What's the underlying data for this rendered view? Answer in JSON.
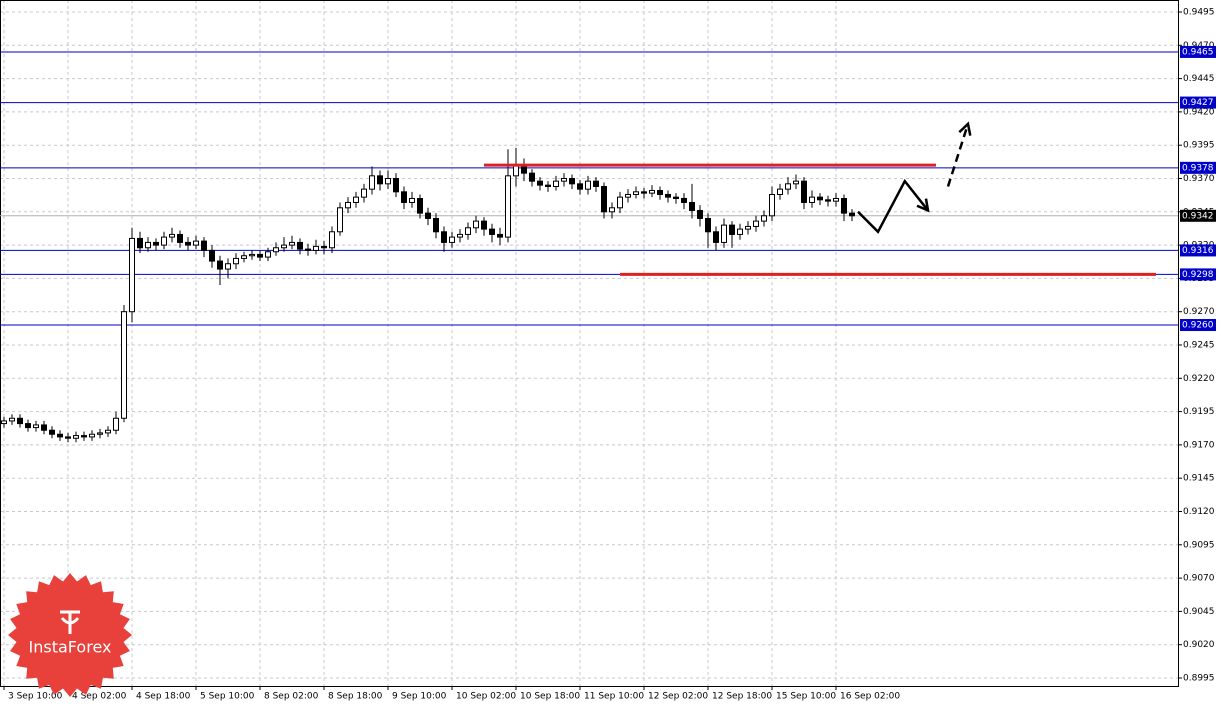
{
  "chart_data": {
    "type": "candlestick",
    "open": [
      0.9186,
      0.9188,
      0.919,
      0.9186,
      0.9183,
      0.9185,
      0.9181,
      0.9178,
      0.9176,
      0.9175,
      0.9177,
      0.9176,
      0.9178,
      0.9179,
      0.9181,
      0.919,
      0.927,
      0.9325,
      0.9318,
      0.9322,
      0.932,
      0.9326,
      0.9328,
      0.9322,
      0.932,
      0.9323,
      0.9316,
      0.9308,
      0.9302,
      0.9306,
      0.931,
      0.9312,
      0.9313,
      0.9311,
      0.9315,
      0.9318,
      0.932,
      0.9322,
      0.9317,
      0.9316,
      0.9319,
      0.9318,
      0.933,
      0.9348,
      0.9352,
      0.9356,
      0.9362,
      0.9372,
      0.9366,
      0.937,
      0.936,
      0.9352,
      0.9355,
      0.9344,
      0.934,
      0.933,
      0.9322,
      0.9326,
      0.9328,
      0.9333,
      0.9338,
      0.9332,
      0.9328,
      0.9326,
      0.9372,
      0.938,
      0.9374,
      0.9368,
      0.9365,
      0.9364,
      0.9368,
      0.937,
      0.9366,
      0.9362,
      0.9368,
      0.9364,
      0.9345,
      0.9348,
      0.9356,
      0.9358,
      0.936,
      0.9359,
      0.9361,
      0.9358,
      0.9356,
      0.9355,
      0.9352,
      0.9346,
      0.934,
      0.933,
      0.9322,
      0.9335,
      0.9328,
      0.9332,
      0.9334,
      0.9338,
      0.9342,
      0.9358,
      0.9362,
      0.9366,
      0.9368,
      0.9352,
      0.9356,
      0.9354,
      0.9353,
      0.9355,
      0.9344
    ],
    "high": [
      0.9191,
      0.9193,
      0.9193,
      0.9189,
      0.9188,
      0.9188,
      0.9184,
      0.9181,
      0.9179,
      0.918,
      0.918,
      0.9181,
      0.9182,
      0.9184,
      0.9195,
      0.9275,
      0.9333,
      0.933,
      0.9326,
      0.9325,
      0.933,
      0.9333,
      0.9331,
      0.9326,
      0.9327,
      0.9326,
      0.932,
      0.9312,
      0.931,
      0.9314,
      0.9315,
      0.9316,
      0.9316,
      0.9318,
      0.9322,
      0.9326,
      0.9327,
      0.9325,
      0.9321,
      0.9324,
      0.9323,
      0.9334,
      0.9352,
      0.9356,
      0.936,
      0.9366,
      0.9379,
      0.9376,
      0.9376,
      0.9374,
      0.9364,
      0.936,
      0.9358,
      0.9348,
      0.9344,
      0.9334,
      0.933,
      0.9332,
      0.9337,
      0.9342,
      0.9341,
      0.9336,
      0.9333,
      0.9392,
      0.9393,
      0.9385,
      0.9377,
      0.9371,
      0.9368,
      0.9372,
      0.9374,
      0.9373,
      0.9369,
      0.9372,
      0.9371,
      0.9367,
      0.9352,
      0.936,
      0.9362,
      0.9364,
      0.9363,
      0.9365,
      0.9364,
      0.9361,
      0.9359,
      0.9359,
      0.9366,
      0.935,
      0.9344,
      0.9334,
      0.934,
      0.9338,
      0.9336,
      0.9338,
      0.9342,
      0.9346,
      0.9364,
      0.9366,
      0.9371,
      0.9373,
      0.9371,
      0.9361,
      0.9359,
      0.9357,
      0.9359,
      0.9358,
      0.9347
    ],
    "low": [
      0.9183,
      0.9185,
      0.9183,
      0.918,
      0.918,
      0.9178,
      0.9175,
      0.9173,
      0.9172,
      0.9172,
      0.9173,
      0.9173,
      0.9175,
      0.9176,
      0.9178,
      0.9187,
      0.9262,
      0.9314,
      0.9315,
      0.9316,
      0.9317,
      0.9322,
      0.9318,
      0.9316,
      0.9317,
      0.9311,
      0.9303,
      0.929,
      0.9295,
      0.9302,
      0.9307,
      0.9309,
      0.9308,
      0.9308,
      0.9312,
      0.9315,
      0.9317,
      0.9313,
      0.9312,
      0.9313,
      0.9313,
      0.9314,
      0.9327,
      0.9344,
      0.9348,
      0.9352,
      0.9358,
      0.9361,
      0.9362,
      0.9356,
      0.9347,
      0.9348,
      0.934,
      0.9335,
      0.9325,
      0.9315,
      0.9318,
      0.9322,
      0.9324,
      0.9329,
      0.9327,
      0.9322,
      0.932,
      0.9322,
      0.9364,
      0.9368,
      0.9364,
      0.9361,
      0.936,
      0.9361,
      0.9364,
      0.9362,
      0.9358,
      0.9358,
      0.936,
      0.934,
      0.934,
      0.9344,
      0.9352,
      0.9355,
      0.9355,
      0.9356,
      0.9354,
      0.9352,
      0.9351,
      0.9347,
      0.934,
      0.9334,
      0.9318,
      0.9316,
      0.9318,
      0.9318,
      0.9324,
      0.9328,
      0.933,
      0.9334,
      0.9338,
      0.9354,
      0.9358,
      0.9362,
      0.9347,
      0.9348,
      0.935,
      0.9349,
      0.9349,
      0.9338,
      0.9338
    ],
    "close": [
      0.9188,
      0.919,
      0.9186,
      0.9183,
      0.9185,
      0.9181,
      0.9178,
      0.9176,
      0.9175,
      0.9177,
      0.9176,
      0.9178,
      0.9179,
      0.9181,
      0.919,
      0.927,
      0.9325,
      0.9318,
      0.9322,
      0.932,
      0.9326,
      0.9328,
      0.9322,
      0.932,
      0.9323,
      0.9316,
      0.9308,
      0.9302,
      0.9306,
      0.931,
      0.9312,
      0.9313,
      0.9311,
      0.9315,
      0.9318,
      0.932,
      0.9322,
      0.9317,
      0.9316,
      0.9319,
      0.9318,
      0.933,
      0.9348,
      0.9352,
      0.9356,
      0.9362,
      0.9372,
      0.9366,
      0.937,
      0.936,
      0.9352,
      0.9355,
      0.9344,
      0.934,
      0.933,
      0.9322,
      0.9326,
      0.9328,
      0.9333,
      0.9338,
      0.9332,
      0.9328,
      0.9326,
      0.9372,
      0.938,
      0.9374,
      0.9368,
      0.9365,
      0.9364,
      0.9368,
      0.937,
      0.9366,
      0.9362,
      0.9368,
      0.9364,
      0.9345,
      0.9348,
      0.9356,
      0.9358,
      0.936,
      0.9359,
      0.9361,
      0.9358,
      0.9356,
      0.9355,
      0.9352,
      0.9346,
      0.934,
      0.933,
      0.9322,
      0.9335,
      0.9328,
      0.9332,
      0.9334,
      0.9338,
      0.9342,
      0.9358,
      0.9362,
      0.9366,
      0.9368,
      0.9352,
      0.9356,
      0.9354,
      0.9353,
      0.9355,
      0.9344,
      0.9342
    ],
    "xlim": [
      -0.5,
      146.75
    ],
    "xticks": [
      {
        "value": 0,
        "label": "3 Sep 10:00"
      },
      {
        "value": 8,
        "label": "4 Sep 02:00"
      },
      {
        "value": 16,
        "label": "4 Sep 18:00"
      },
      {
        "value": 24,
        "label": "5 Sep 10:00"
      },
      {
        "value": 32,
        "label": "8 Sep 02:00"
      },
      {
        "value": 40,
        "label": "8 Sep 18:00"
      },
      {
        "value": 48,
        "label": "9 Sep 10:00"
      },
      {
        "value": 56,
        "label": "10 Sep 02:00"
      },
      {
        "value": 64,
        "label": "10 Sep 18:00"
      },
      {
        "value": 72,
        "label": "11 Sep 10:00"
      },
      {
        "value": 80,
        "label": "12 Sep 02:00"
      },
      {
        "value": 88,
        "label": "12 Sep 18:00"
      },
      {
        "value": 96,
        "label": "15 Sep 10:00"
      },
      {
        "value": 104,
        "label": "16 Sep 02:00"
      }
    ],
    "ylim": [
      0.8989,
      0.9504
    ],
    "yticks": [
      0.8995,
      {
        "value": 0.902,
        "label": "0.9020"
      },
      0.9045,
      {
        "value": 0.907,
        "label": "0.9070"
      },
      0.9095,
      {
        "value": 0.912,
        "label": "0.9120"
      },
      0.9145,
      {
        "value": 0.917,
        "label": "0.9170"
      },
      0.9195,
      {
        "value": 0.922,
        "label": "0.9220"
      },
      0.9245,
      {
        "value": 0.927,
        "label": "0.9270"
      },
      0.9295,
      {
        "value": 0.932,
        "label": "0.9320"
      },
      0.9345,
      {
        "value": 0.937,
        "label": "0.9370"
      },
      0.9395,
      {
        "value": 0.942,
        "label": "0.9420"
      },
      0.9445,
      {
        "value": 0.947,
        "label": "0.9470"
      },
      0.9495
    ],
    "grid": true,
    "color": "#000000",
    "levels": [
      0.9465,
      0.9427,
      0.9378,
      0.9316,
      0.9298,
      {
        "value": 0.926,
        "label": "0.9260"
      }
    ],
    "level_color": "#0000c8",
    "current_price": 0.9342,
    "zones": [
      {
        "value": 0.938,
        "x": [
          60,
          116.5
        ]
      },
      {
        "value": 0.9298,
        "x": [
          77,
          144
        ]
      }
    ],
    "zone_color": "#e02020",
    "forecast": {
      "solid": {
        "x": [
          106.75,
          109.25,
          112.6,
          115.5
        ],
        "y": [
          0.9345,
          0.933,
          0.9368,
          0.9346
        ]
      },
      "dashed": {
        "x": [
          118,
          120.5
        ],
        "y": [
          0.9364,
          0.9411
        ]
      }
    },
    "logo_text": "InstaForex"
  }
}
